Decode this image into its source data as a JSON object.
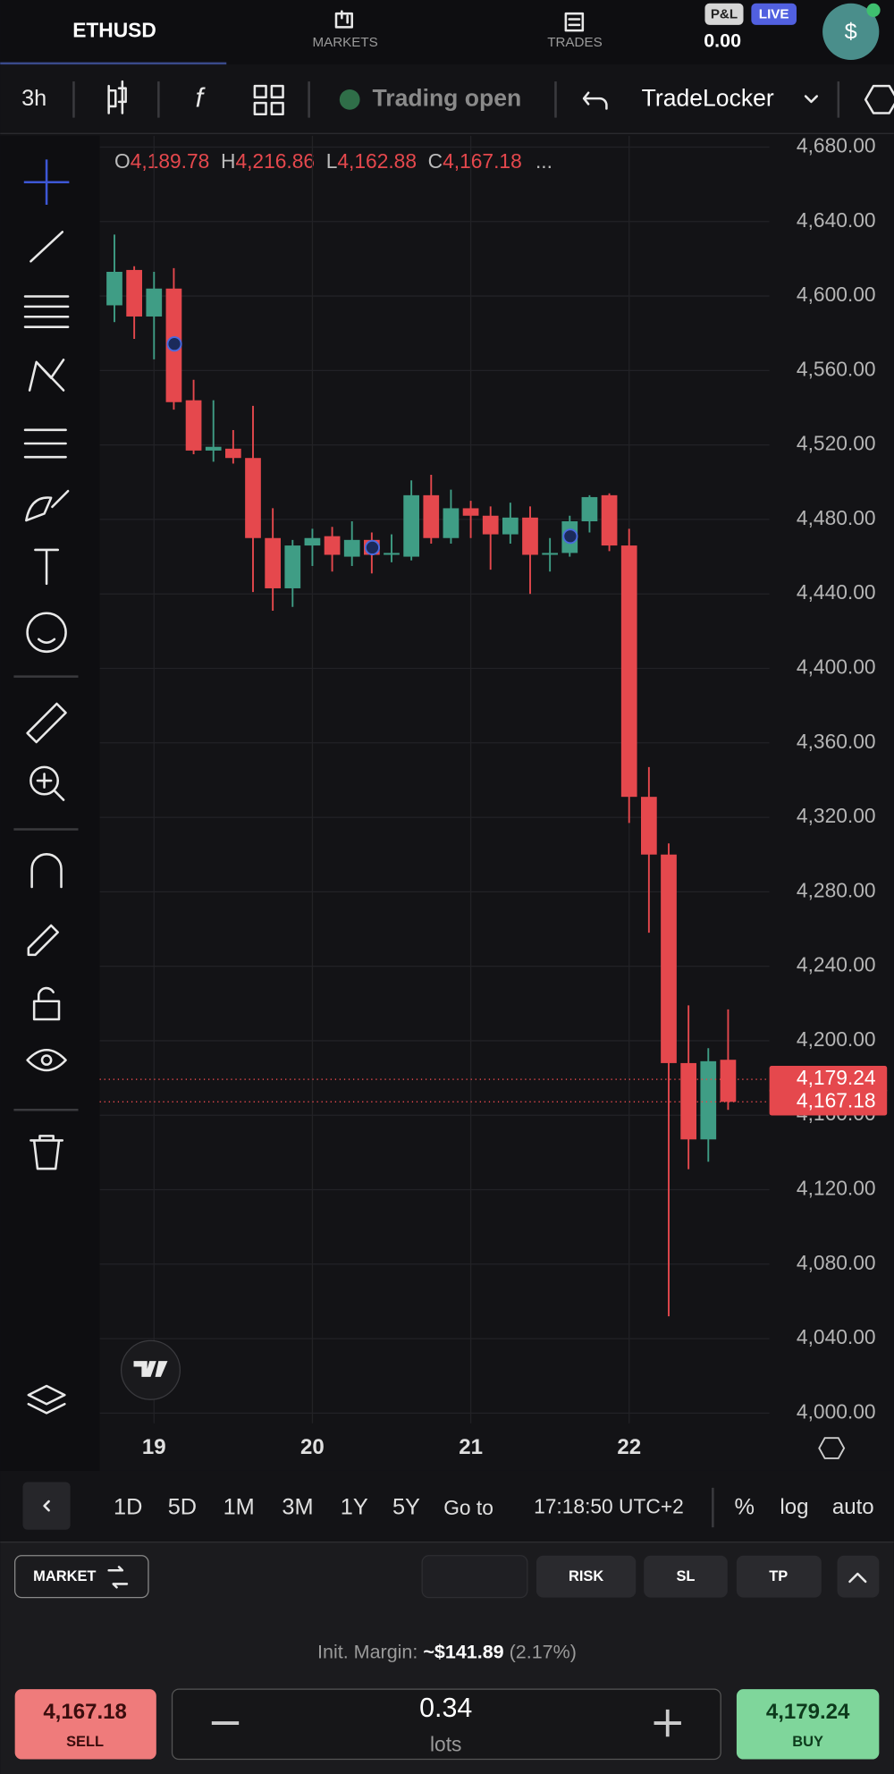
{
  "header": {
    "symbol": "ETHUSD",
    "markets": "MARKETS",
    "trades": "TRADES",
    "pnl_label": "P&L",
    "live": "LIVE",
    "pnl_value": "0.00",
    "avatar": "$"
  },
  "toolbar": {
    "interval": "3h",
    "status": "Trading open",
    "broker": "TradeLocker"
  },
  "chart_data": {
    "type": "candlestick",
    "ohlc_legend": [
      {
        "label": "O",
        "value": "4,189.78"
      },
      {
        "label": "H",
        "value": "4,216.86"
      },
      {
        "label": "L",
        "value": "4,162.88"
      },
      {
        "label": "C",
        "value": "4,167.18"
      }
    ],
    "legend_more": "...",
    "categories": [
      null,
      null,
      "19",
      null,
      null,
      null,
      null,
      null,
      null,
      null,
      "20",
      null,
      null,
      null,
      null,
      null,
      null,
      null,
      "21",
      null,
      null,
      null,
      null,
      null,
      null,
      null,
      "22",
      null,
      null,
      null,
      null,
      null
    ],
    "open": [
      4595,
      4614,
      4589,
      4604,
      4544,
      4517,
      4518,
      4513,
      4470,
      4443,
      4466,
      4471,
      4460,
      4469,
      4461,
      4460,
      4493,
      4470,
      4486,
      4482,
      4472,
      4481,
      4461,
      4462,
      4479,
      4493,
      4466,
      4331,
      4300,
      4188,
      4147,
      4189.78
    ],
    "high": [
      4633,
      4616,
      4613,
      4615,
      4555,
      4544,
      4528,
      4541,
      4486,
      4469,
      4475,
      4476,
      4479,
      4473,
      4472,
      4501,
      4504,
      4496,
      4490,
      4487,
      4489,
      4487,
      4470,
      4482,
      4493,
      4494,
      4475,
      4347,
      4306,
      4219,
      4196,
      4216.86
    ],
    "low": [
      4586,
      4577,
      4566,
      4539,
      4515,
      4511,
      4510,
      4441,
      4431,
      4433,
      4455,
      4452,
      4455,
      4451,
      4457,
      4458,
      4467,
      4467,
      4470,
      4453,
      4467,
      4440,
      4452,
      4460,
      4473,
      4463,
      4317,
      4258,
      4052,
      4131,
      4135,
      4162.88
    ],
    "close": [
      4613,
      4589,
      4604,
      4543,
      4517,
      4519,
      4513,
      4470,
      4443,
      4466,
      4470,
      4461,
      4469,
      4461,
      4462,
      4493,
      4470,
      4486,
      4482,
      4472,
      4481,
      4461,
      4462,
      4479,
      4492,
      4466,
      4331,
      4300,
      4188,
      4147,
      4189,
      4167.18
    ],
    "up_color": "#3f9d85",
    "down_color": "#e5484d",
    "ylim": [
      4000,
      4680
    ],
    "yticks": [
      {
        "value": 4000,
        "label": "4,000.00"
      },
      {
        "value": 4040,
        "label": "4,040.00"
      },
      {
        "value": 4080,
        "label": "4,080.00"
      },
      {
        "value": 4120,
        "label": "4,120.00"
      },
      {
        "value": 4160,
        "label": "4,160.00"
      },
      {
        "value": 4200,
        "label": "4,200.00"
      },
      {
        "value": 4240,
        "label": "4,240.00"
      },
      {
        "value": 4280,
        "label": "4,280.00"
      },
      {
        "value": 4320,
        "label": "4,320.00"
      },
      {
        "value": 4360,
        "label": "4,360.00"
      },
      {
        "value": 4400,
        "label": "4,400.00"
      },
      {
        "value": 4440,
        "label": "4,440.00"
      },
      {
        "value": 4480,
        "label": "4,480.00"
      },
      {
        "value": 4520,
        "label": "4,520.00"
      },
      {
        "value": 4560,
        "label": "4,560.00"
      },
      {
        "value": 4600,
        "label": "4,600.00"
      },
      {
        "value": 4640,
        "label": "4,640.00"
      },
      {
        "value": 4680,
        "label": "4,680.00"
      }
    ],
    "price_lines": [
      {
        "value": 4179.24,
        "label": "4,179.24"
      },
      {
        "value": 4167.18,
        "label": "4,167.18"
      }
    ],
    "grid": true,
    "log_scale": false
  },
  "range_bar": {
    "ranges": [
      "1D",
      "5D",
      "1M",
      "3M",
      "1Y",
      "5Y"
    ],
    "goto": "Go to",
    "time": "17:18:50 UTC+2",
    "percent": "%",
    "log": "log",
    "auto": "auto"
  },
  "order_panel": {
    "order_type": "MARKET",
    "risk": "RISK",
    "sl": "SL",
    "tp": "TP",
    "margin_label": "Init. Margin:",
    "margin_value": "~$141.89",
    "margin_pct": "(2.17%)",
    "sell_price": "4,167.18",
    "sell": "SELL",
    "lots_value": "0.34",
    "lots": "lots",
    "buy_price": "4,179.24",
    "buy": "BUY"
  }
}
